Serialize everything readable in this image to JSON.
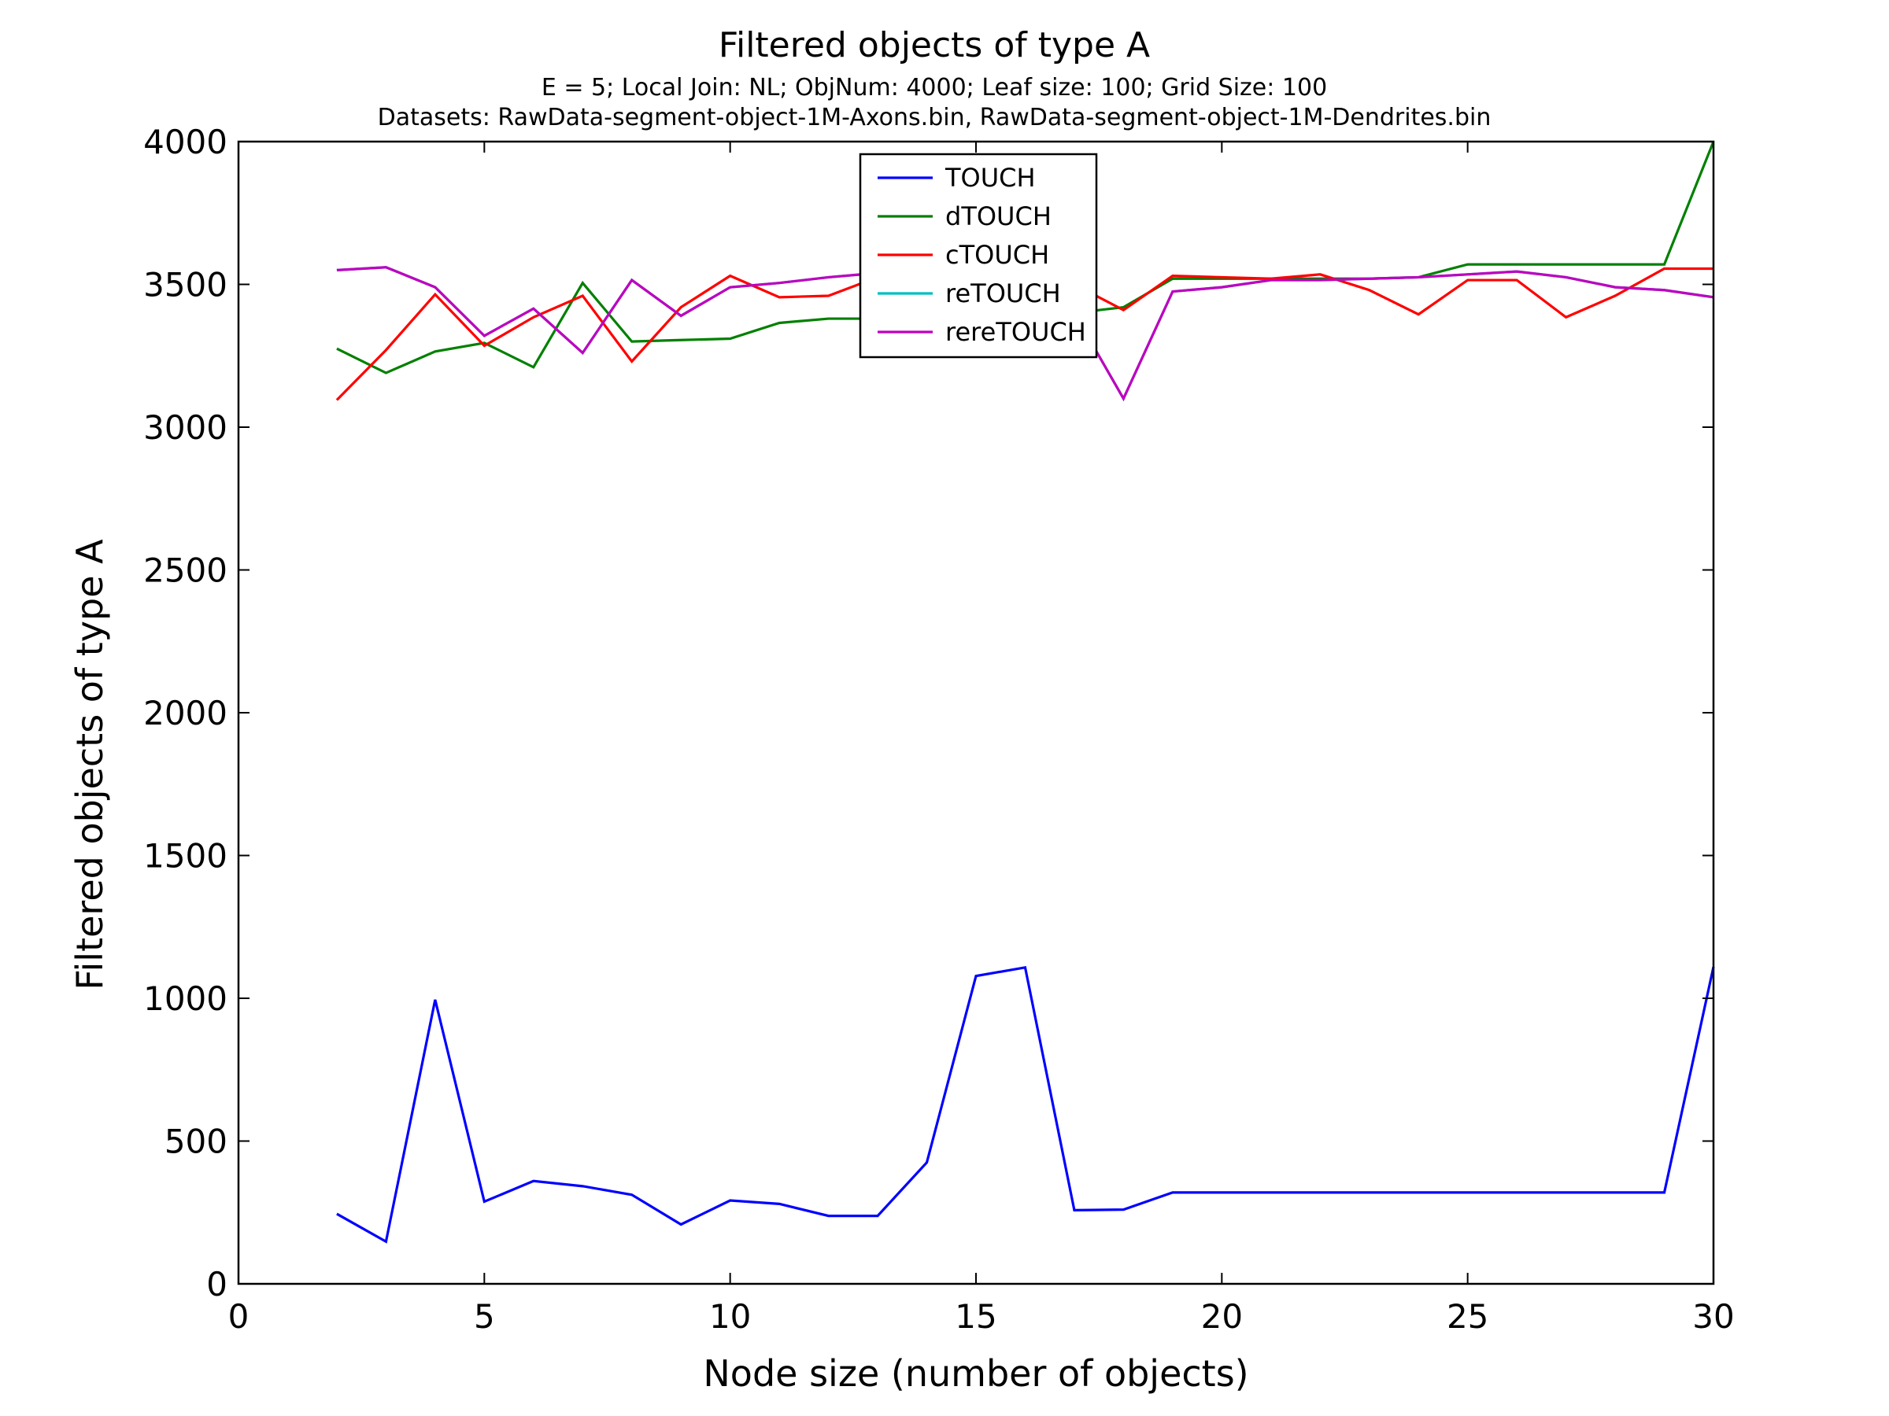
{
  "chart_data": {
    "type": "line",
    "title": "Filtered objects of type A",
    "subtitle_lines": [
      "E = 5; Local Join: NL; ObjNum: 4000; Leaf size: 100; Grid Size: 100",
      "Datasets: RawData-segment-object-1M-Axons.bin, RawData-segment-object-1M-Dendrites.bin"
    ],
    "xlabel": "Node size (number of objects)",
    "ylabel": "Filtered objects of type A",
    "xlim": [
      0,
      30
    ],
    "ylim": [
      0,
      4000
    ],
    "xticks": [
      0,
      5,
      10,
      15,
      20,
      25,
      30
    ],
    "yticks": [
      0,
      500,
      1000,
      1500,
      2000,
      2500,
      3000,
      3500,
      4000
    ],
    "grid": false,
    "legend_position": "top-center",
    "x": [
      2,
      3,
      4,
      5,
      6,
      7,
      8,
      9,
      10,
      11,
      12,
      13,
      14,
      15,
      16,
      17,
      18,
      19,
      20,
      21,
      22,
      23,
      24,
      25,
      26,
      27,
      28,
      29,
      30
    ],
    "series": [
      {
        "name": "TOUCH",
        "color": "#0000ff",
        "values": [
          245,
          148,
          995,
          288,
          360,
          342,
          312,
          208,
          292,
          280,
          238,
          238,
          425,
          1078,
          1108,
          258,
          260,
          320,
          320,
          320,
          320,
          320,
          320,
          320,
          320,
          320,
          320,
          320,
          1110
        ]
      },
      {
        "name": "dTOUCH",
        "color": "#008000",
        "values": [
          3275,
          3190,
          3265,
          3295,
          3210,
          3505,
          3300,
          3305,
          3310,
          3365,
          3380,
          3380,
          3390,
          3400,
          3400,
          3400,
          3420,
          3520,
          3520,
          3520,
          3520,
          3520,
          3525,
          3570,
          3570,
          3570,
          3570,
          3570,
          4000
        ]
      },
      {
        "name": "cTOUCH",
        "color": "#ff0000",
        "values": [
          3095,
          3270,
          3465,
          3285,
          3385,
          3460,
          3230,
          3420,
          3530,
          3455,
          3460,
          3525,
          3500,
          3500,
          3500,
          3500,
          3410,
          3530,
          3525,
          3520,
          3535,
          3480,
          3395,
          3515,
          3515,
          3385,
          3460,
          3555,
          3555
        ]
      },
      {
        "name": "reTOUCH",
        "color": "#00bfbf",
        "values": [
          3550,
          3560,
          3490,
          3320,
          3415,
          3260,
          3515,
          3390,
          3490,
          3505,
          3525,
          3540,
          3540,
          3540,
          3540,
          3400,
          3100,
          3475,
          3490,
          3515,
          3515,
          3520,
          3525,
          3535,
          3545,
          3525,
          3490,
          3480,
          3455
        ]
      },
      {
        "name": "rereTOUCH",
        "color": "#bf00bf",
        "values": [
          3550,
          3560,
          3490,
          3320,
          3415,
          3260,
          3515,
          3390,
          3490,
          3505,
          3525,
          3540,
          3540,
          3540,
          3540,
          3400,
          3100,
          3475,
          3490,
          3515,
          3515,
          3520,
          3525,
          3535,
          3545,
          3525,
          3490,
          3480,
          3455
        ]
      }
    ]
  }
}
